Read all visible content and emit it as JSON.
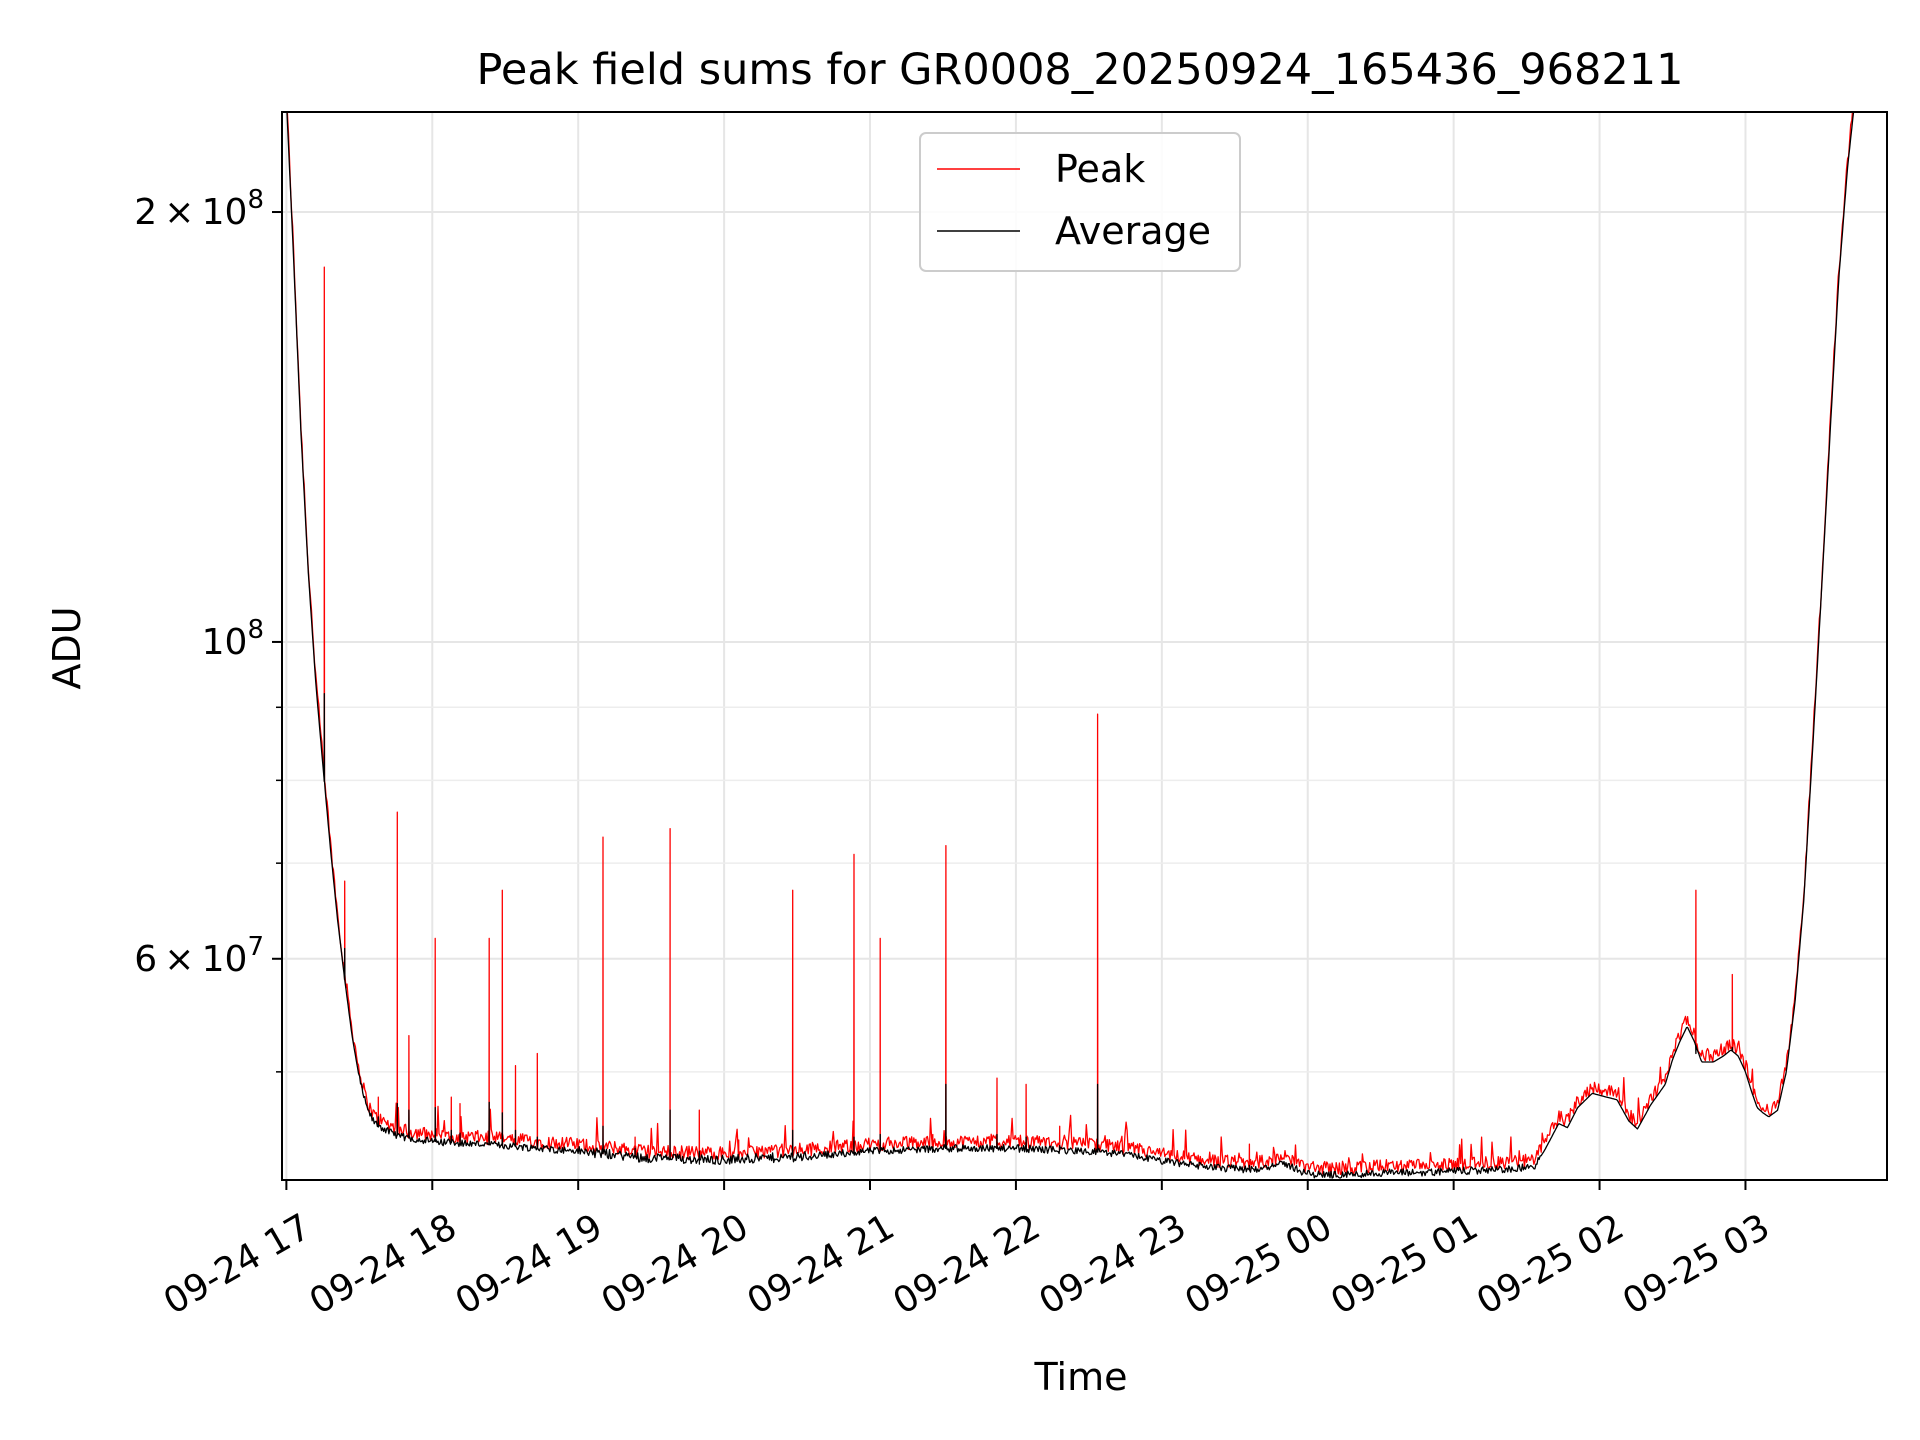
{
  "chart_data": {
    "type": "line",
    "title": "Peak field sums for GR0008_20250924_165436_968211",
    "xlabel": "Time",
    "ylabel": "ADU",
    "yscale": "log",
    "ylim": [
      42000000,
      235000000
    ],
    "xlim_hours": [
      -0.03,
      10.97
    ],
    "grid": true,
    "legend_position": "top-center",
    "x_ticks": [
      {
        "label": "09-24 17",
        "hour": 0
      },
      {
        "label": "09-24 18",
        "hour": 1
      },
      {
        "label": "09-24 19",
        "hour": 2
      },
      {
        "label": "09-24 20",
        "hour": 3
      },
      {
        "label": "09-24 21",
        "hour": 4
      },
      {
        "label": "09-24 22",
        "hour": 5
      },
      {
        "label": "09-24 23",
        "hour": 6
      },
      {
        "label": "09-25 00",
        "hour": 7
      },
      {
        "label": "09-25 01",
        "hour": 8
      },
      {
        "label": "09-25 02",
        "hour": 9
      },
      {
        "label": "09-25 03",
        "hour": 10
      }
    ],
    "y_major_ticks": [
      {
        "value": 60000000,
        "mantissa": "6",
        "base": "10",
        "exp": "7",
        "times": "×"
      },
      {
        "value": 100000000,
        "mantissa": "",
        "base": "10",
        "exp": "8",
        "times": ""
      },
      {
        "value": 200000000,
        "mantissa": "2",
        "base": "10",
        "exp": "8",
        "times": "×"
      }
    ],
    "y_minor_ticks": [
      50000000,
      70000000,
      80000000,
      90000000,
      300000000
    ],
    "series": [
      {
        "name": "Peak",
        "color": "#ff0000"
      },
      {
        "name": "Average",
        "color": "#000000"
      }
    ],
    "average_baseline": [
      [
        0.0,
        240000000
      ],
      [
        0.05,
        185000000
      ],
      [
        0.1,
        140000000
      ],
      [
        0.15,
        112000000
      ],
      [
        0.2,
        94000000
      ],
      [
        0.25,
        82000000
      ],
      [
        0.3,
        72000000
      ],
      [
        0.35,
        64000000
      ],
      [
        0.4,
        58000000
      ],
      [
        0.45,
        53000000
      ],
      [
        0.5,
        49500000
      ],
      [
        0.55,
        47200000
      ],
      [
        0.6,
        46100000
      ],
      [
        0.7,
        45400000
      ],
      [
        0.8,
        45000000
      ],
      [
        1.0,
        44700000
      ],
      [
        1.5,
        44400000
      ],
      [
        2.0,
        44000000
      ],
      [
        2.5,
        43500000
      ],
      [
        3.0,
        43400000
      ],
      [
        3.5,
        43600000
      ],
      [
        4.0,
        44000000
      ],
      [
        4.5,
        44200000
      ],
      [
        5.0,
        44200000
      ],
      [
        5.5,
        44000000
      ],
      [
        5.8,
        43700000
      ],
      [
        6.0,
        43300000
      ],
      [
        6.3,
        42900000
      ],
      [
        6.6,
        42700000
      ],
      [
        6.85,
        43100000
      ],
      [
        7.0,
        42400000
      ],
      [
        7.3,
        42350000
      ],
      [
        7.5,
        42500000
      ],
      [
        7.8,
        42500000
      ],
      [
        8.0,
        42600000
      ],
      [
        8.3,
        42700000
      ],
      [
        8.55,
        42900000
      ],
      [
        8.62,
        44000000
      ],
      [
        8.72,
        46000000
      ],
      [
        8.78,
        45700000
      ],
      [
        8.85,
        47200000
      ],
      [
        8.95,
        48300000
      ],
      [
        9.05,
        48000000
      ],
      [
        9.12,
        47800000
      ],
      [
        9.2,
        46200000
      ],
      [
        9.26,
        45600000
      ],
      [
        9.35,
        47400000
      ],
      [
        9.45,
        49000000
      ],
      [
        9.5,
        51000000
      ],
      [
        9.55,
        52500000
      ],
      [
        9.6,
        53800000
      ],
      [
        9.65,
        52500000
      ],
      [
        9.7,
        50800000
      ],
      [
        9.78,
        50800000
      ],
      [
        9.85,
        51300000
      ],
      [
        9.9,
        51800000
      ],
      [
        9.95,
        51300000
      ],
      [
        10.0,
        50000000
      ],
      [
        10.04,
        48500000
      ],
      [
        10.08,
        47200000
      ],
      [
        10.12,
        46800000
      ],
      [
        10.16,
        46500000
      ],
      [
        10.22,
        47000000
      ],
      [
        10.28,
        50000000
      ],
      [
        10.34,
        56000000
      ],
      [
        10.4,
        66000000
      ],
      [
        10.46,
        84000000
      ],
      [
        10.52,
        108000000
      ],
      [
        10.58,
        140000000
      ],
      [
        10.64,
        180000000
      ],
      [
        10.7,
        215000000
      ],
      [
        10.75,
        240000000
      ]
    ],
    "peak_spikes": [
      {
        "hour": 0.26,
        "peak": 183000000,
        "avg": 92000000
      },
      {
        "hour": 0.4,
        "peak": 68000000,
        "avg": 61000000
      },
      {
        "hour": 0.63,
        "peak": 48000000,
        "avg": 46500000
      },
      {
        "hour": 0.76,
        "peak": 76000000,
        "avg": 47500000
      },
      {
        "hour": 0.84,
        "peak": 53000000,
        "avg": 47000000
      },
      {
        "hour": 1.02,
        "peak": 62000000,
        "avg": 47200000
      },
      {
        "hour": 1.13,
        "peak": 48000000,
        "avg": 45500000
      },
      {
        "hour": 1.19,
        "peak": 47500000,
        "avg": 45300000
      },
      {
        "hour": 1.39,
        "peak": 62000000,
        "avg": 47600000
      },
      {
        "hour": 1.48,
        "peak": 67000000,
        "avg": 46800000
      },
      {
        "hour": 1.57,
        "peak": 50500000,
        "avg": 45500000
      },
      {
        "hour": 1.72,
        "peak": 51500000,
        "avg": 45000000
      },
      {
        "hour": 2.17,
        "peak": 73000000,
        "avg": 45800000
      },
      {
        "hour": 2.39,
        "peak": 45000000,
        "avg": 44200000
      },
      {
        "hour": 2.63,
        "peak": 74000000,
        "avg": 47000000
      },
      {
        "hour": 2.83,
        "peak": 47000000,
        "avg": 44000000
      },
      {
        "hour": 3.1,
        "peak": 44800000,
        "avg": 43600000
      },
      {
        "hour": 3.47,
        "peak": 67000000,
        "avg": 45500000
      },
      {
        "hour": 3.89,
        "peak": 71000000,
        "avg": 45000000
      },
      {
        "hour": 4.07,
        "peak": 62000000,
        "avg": 45200000
      },
      {
        "hour": 4.43,
        "peak": 45200000,
        "avg": 44300000
      },
      {
        "hour": 4.52,
        "peak": 72000000,
        "avg": 49000000
      },
      {
        "hour": 4.87,
        "peak": 49500000,
        "avg": 45200000
      },
      {
        "hour": 5.07,
        "peak": 49000000,
        "avg": 45000000
      },
      {
        "hour": 5.3,
        "peak": 45800000,
        "avg": 44400000
      },
      {
        "hour": 5.56,
        "peak": 89000000,
        "avg": 49000000
      },
      {
        "hour": 6.6,
        "peak": 44500000,
        "avg": 43000000
      },
      {
        "hour": 9.66,
        "peak": 67000000,
        "avg": 51500000
      },
      {
        "hour": 9.91,
        "peak": 58500000,
        "avg": 52000000
      }
    ]
  }
}
